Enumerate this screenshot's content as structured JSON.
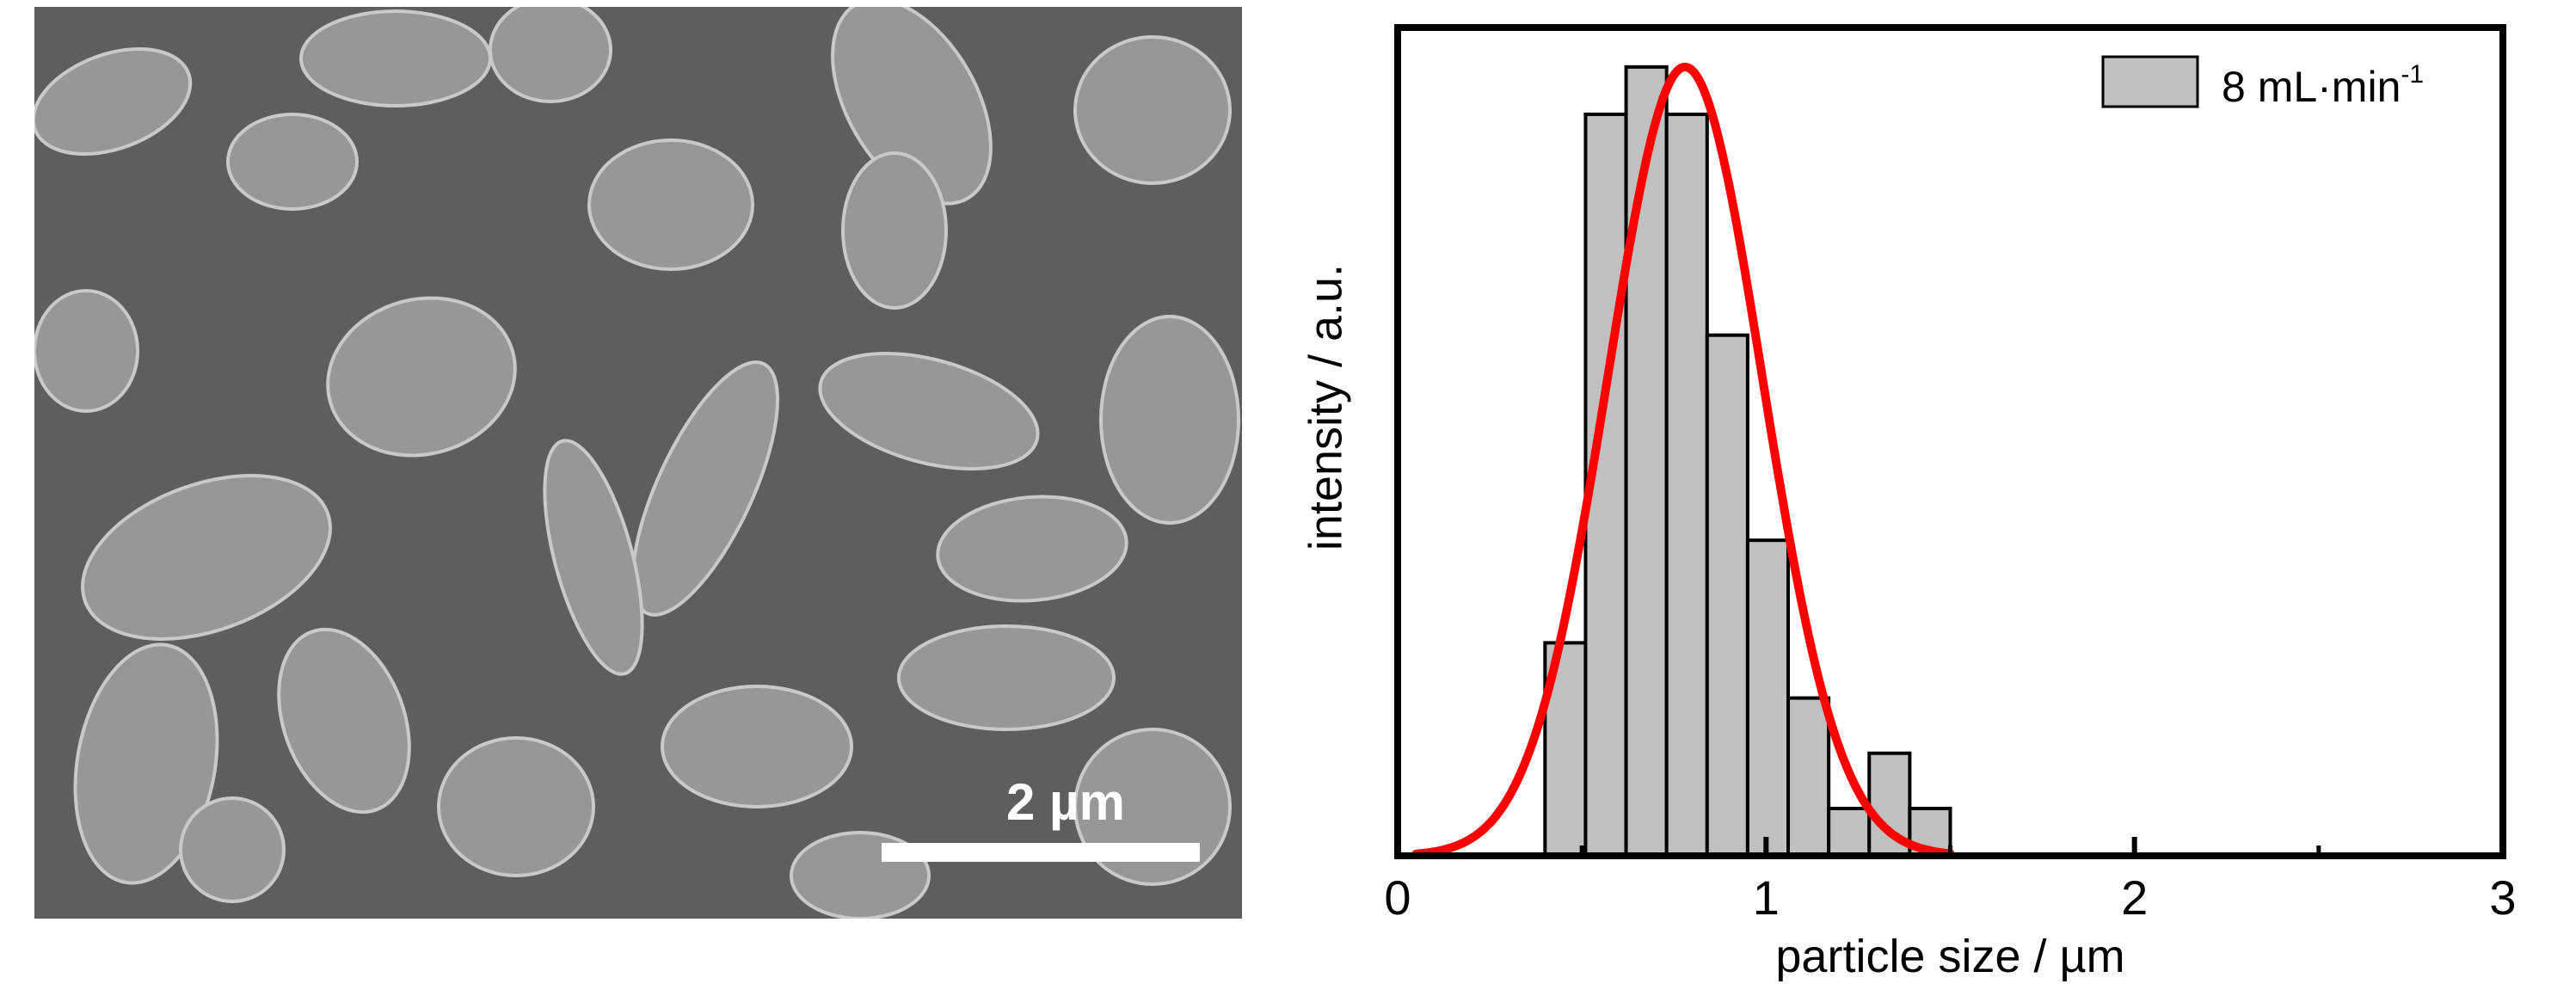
{
  "figure": {
    "sem_image": {
      "scale_bar_label": "2 µm",
      "scale_bar_value_um": 2
    }
  },
  "chart_data": {
    "type": "bar",
    "subtype": "histogram-with-fit",
    "xlabel": "particle size / µm",
    "ylabel": "intensity / a.u.",
    "xlim": [
      0,
      3
    ],
    "ylim": [
      0,
      1.05
    ],
    "x_ticks": [
      0,
      1,
      2,
      3
    ],
    "x_tick_labels": [
      "0",
      "1",
      "2",
      "3"
    ],
    "y_ticks_shown": false,
    "grid": false,
    "legend_position": "top-right",
    "bar_color": "#c0c0c0",
    "bar_edge_color": "#000000",
    "fit_color": "#ff0000",
    "series": [
      {
        "name": "8 mL·min",
        "name_superscript": "-1",
        "bin_width": 0.11,
        "bin_starts": [
          0.4,
          0.51,
          0.62,
          0.73,
          0.84,
          0.95,
          1.06,
          1.17,
          1.28,
          1.39
        ],
        "values": [
          0.27,
          0.94,
          1.0,
          0.94,
          0.66,
          0.4,
          0.2,
          0.06,
          0.13,
          0.06
        ]
      }
    ],
    "fit": {
      "type": "gaussian",
      "mean": 0.78,
      "sigma": 0.21,
      "amplitude": 1.0,
      "x_range": [
        0.05,
        1.5
      ]
    }
  }
}
